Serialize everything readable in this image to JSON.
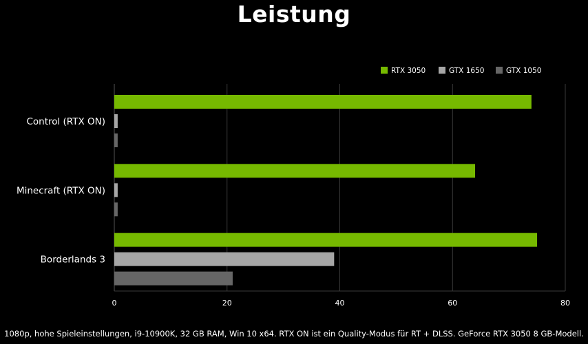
{
  "title": "Leistung",
  "footnote": "1080p, hohe Spieleinstellungen, i9-10900K, 32 GB RAM, Win 10 x64. RTX ON ist ein Quality-Modus für RT + DLSS. GeForce RTX 3050 8 GB-Modell.",
  "colors": {
    "RTX 3050": "#76b900",
    "GTX 1650": "#a6a6a6",
    "GTX 1050": "#666666",
    "grid": "#3a3a3a"
  },
  "chart_data": {
    "type": "bar",
    "orientation": "horizontal",
    "categories": [
      "Control (RTX ON)",
      "Minecraft (RTX ON)",
      "Borderlands 3"
    ],
    "series": [
      {
        "name": "RTX 3050",
        "values": [
          74,
          64,
          75
        ]
      },
      {
        "name": "GTX 1650",
        "values": [
          0.6,
          0.6,
          39
        ]
      },
      {
        "name": "GTX 1050",
        "values": [
          0.6,
          0.6,
          21
        ]
      }
    ],
    "xlim": [
      0,
      80
    ],
    "xticks": [
      0,
      20,
      40,
      60,
      80
    ],
    "grid": true,
    "legend": "top-right"
  }
}
